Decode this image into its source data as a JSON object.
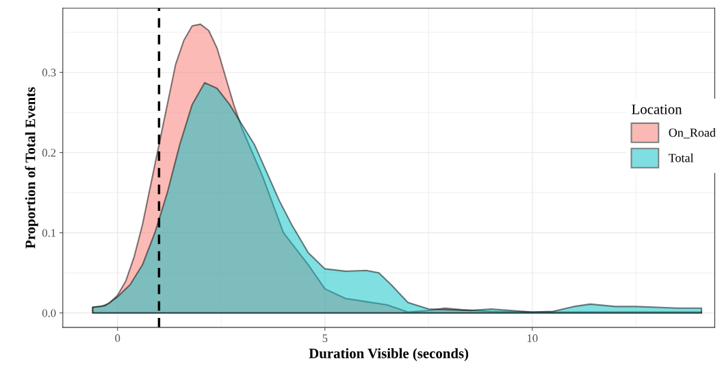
{
  "chart_data": {
    "type": "area",
    "xlabel": "Duration Visible (seconds)",
    "ylabel": "Proportion of Total Events",
    "legend_title": "Location",
    "legend": "right",
    "grid": true,
    "xlim": [
      -1.32,
      14.4
    ],
    "ylim": [
      -0.018,
      0.38
    ],
    "xticks": [
      0,
      5,
      10
    ],
    "yticks": [
      {
        "value": 0,
        "label": "0.0"
      },
      0.1,
      0.2,
      0.3
    ],
    "ref_lines": [
      {
        "axis": "x",
        "value": 1,
        "color": "#000000",
        "line_style": "dashed"
      }
    ],
    "series": [
      {
        "name": "On_Road",
        "color": "#f8766d",
        "x": [
          -0.6,
          -0.4,
          -0.2,
          0,
          0.2,
          0.4,
          0.6,
          0.8,
          1.0,
          1.2,
          1.4,
          1.6,
          1.8,
          2.0,
          2.2,
          2.4,
          2.6,
          2.8,
          3.0,
          3.5,
          4.0,
          4.6,
          5.0,
          5.5,
          6.0,
          6.5,
          7.0,
          7.5,
          7.9,
          8.3,
          9,
          10,
          11,
          12,
          13,
          14.08
        ],
        "values": [
          0.007,
          0.008,
          0.012,
          0.022,
          0.04,
          0.07,
          0.11,
          0.16,
          0.21,
          0.26,
          0.31,
          0.34,
          0.358,
          0.36,
          0.352,
          0.33,
          0.295,
          0.26,
          0.23,
          0.17,
          0.1,
          0.06,
          0.03,
          0.018,
          0.014,
          0.01,
          0.001,
          0.003,
          0.006,
          0.004,
          0.002,
          0.001,
          0.001,
          0.001,
          0.001,
          0.001
        ]
      },
      {
        "name": "Total",
        "color": "#00bfc4",
        "x": [
          -0.6,
          -0.3,
          0,
          0.3,
          0.6,
          0.9,
          1.2,
          1.5,
          1.8,
          2.1,
          2.4,
          2.7,
          3.0,
          3.3,
          3.6,
          3.9,
          4.2,
          4.6,
          5.0,
          5.5,
          6.0,
          6.3,
          6.6,
          7.0,
          7.5,
          8.0,
          8.5,
          9.0,
          9.5,
          10,
          10.5,
          11,
          11.4,
          12,
          12.5,
          13,
          13.5,
          14.08
        ],
        "values": [
          0.007,
          0.009,
          0.02,
          0.035,
          0.06,
          0.1,
          0.15,
          0.21,
          0.26,
          0.287,
          0.28,
          0.26,
          0.235,
          0.21,
          0.175,
          0.14,
          0.11,
          0.075,
          0.055,
          0.052,
          0.053,
          0.05,
          0.035,
          0.013,
          0.005,
          0.004,
          0.003,
          0.005,
          0.003,
          0.001,
          0.002,
          0.008,
          0.011,
          0.008,
          0.008,
          0.007,
          0.006,
          0.006
        ]
      }
    ]
  }
}
